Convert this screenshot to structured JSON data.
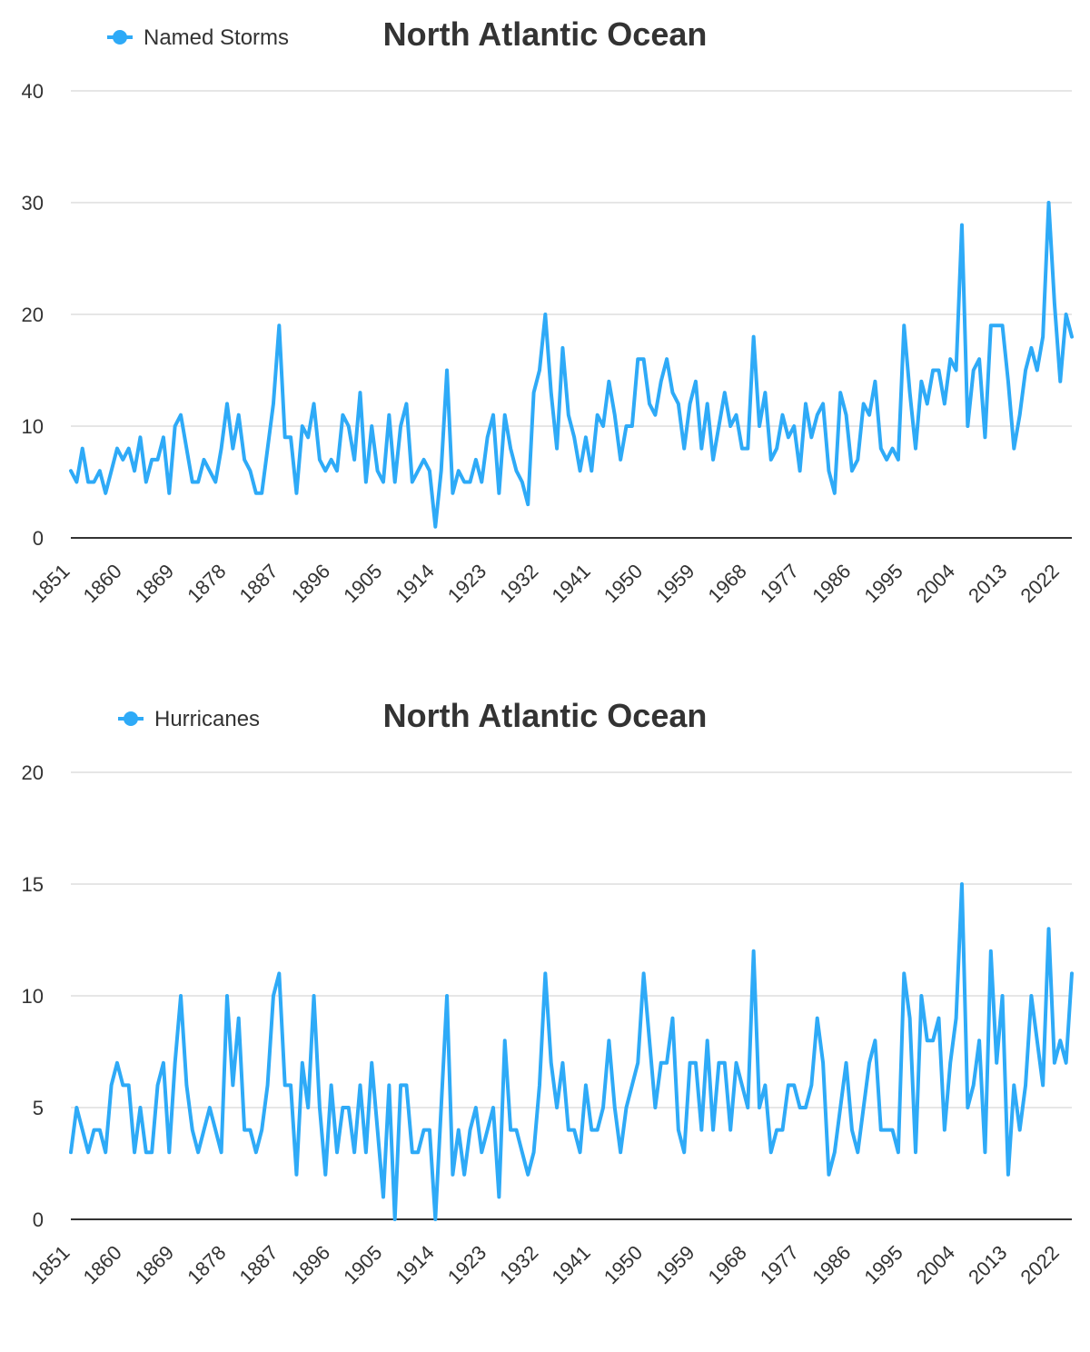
{
  "chart_data": [
    {
      "type": "line",
      "title": "North Atlantic Ocean",
      "legend": "Named Storms",
      "legend_position": "top-left",
      "color": "#2eaaf7",
      "x_start": 1851,
      "x_end": 2024,
      "x_ticks": [
        1851,
        1860,
        1869,
        1878,
        1887,
        1896,
        1905,
        1914,
        1923,
        1932,
        1941,
        1950,
        1959,
        1968,
        1977,
        1986,
        1995,
        2004,
        2013,
        2022
      ],
      "y_ticks": [
        0,
        10,
        20,
        30,
        40
      ],
      "ylim": [
        0,
        40
      ],
      "grid": true,
      "values": [
        6,
        5,
        8,
        5,
        5,
        6,
        4,
        6,
        8,
        7,
        8,
        6,
        9,
        5,
        7,
        7,
        9,
        4,
        10,
        11,
        8,
        5,
        5,
        7,
        6,
        5,
        8,
        12,
        8,
        11,
        7,
        6,
        4,
        4,
        8,
        12,
        19,
        9,
        9,
        4,
        10,
        9,
        12,
        7,
        6,
        7,
        6,
        11,
        10,
        7,
        13,
        5,
        10,
        6,
        5,
        11,
        5,
        10,
        12,
        5,
        6,
        7,
        6,
        1,
        6,
        15,
        4,
        6,
        5,
        5,
        7,
        5,
        9,
        11,
        4,
        11,
        8,
        6,
        5,
        3,
        13,
        15,
        20,
        13,
        8,
        17,
        11,
        9,
        6,
        9,
        6,
        11,
        10,
        14,
        11,
        7,
        10,
        10,
        16,
        16,
        12,
        11,
        14,
        16,
        13,
        12,
        8,
        12,
        14,
        8,
        12,
        7,
        10,
        13,
        10,
        11,
        8,
        8,
        18,
        10,
        13,
        7,
        8,
        11,
        9,
        10,
        6,
        12,
        9,
        11,
        12,
        6,
        4,
        13,
        11,
        6,
        7,
        12,
        11,
        14,
        8,
        7,
        8,
        7,
        19,
        13,
        8,
        14,
        12,
        15,
        15,
        12,
        16,
        15,
        28,
        10,
        15,
        16,
        9,
        19,
        19,
        19,
        14,
        8,
        11,
        15,
        17,
        15,
        18,
        30,
        21,
        14,
        20,
        18
      ]
    },
    {
      "type": "line",
      "title": "North Atlantic Ocean",
      "legend": "Hurricanes",
      "legend_position": "top-left",
      "color": "#2eaaf7",
      "x_start": 1851,
      "x_end": 2024,
      "x_ticks": [
        1851,
        1860,
        1869,
        1878,
        1887,
        1896,
        1905,
        1914,
        1923,
        1932,
        1941,
        1950,
        1959,
        1968,
        1977,
        1986,
        1995,
        2004,
        2013,
        2022
      ],
      "y_ticks": [
        0,
        5,
        10,
        15,
        20
      ],
      "ylim": [
        0,
        20
      ],
      "grid": true,
      "values": [
        3,
        5,
        4,
        3,
        4,
        4,
        3,
        6,
        7,
        6,
        6,
        3,
        5,
        3,
        3,
        6,
        7,
        3,
        7,
        10,
        6,
        4,
        3,
        4,
        5,
        4,
        3,
        10,
        6,
        9,
        4,
        4,
        3,
        4,
        6,
        10,
        11,
        6,
        6,
        2,
        7,
        5,
        10,
        5,
        2,
        6,
        3,
        5,
        5,
        3,
        6,
        3,
        7,
        4,
        1,
        6,
        0,
        6,
        6,
        3,
        3,
        4,
        4,
        0,
        5,
        10,
        2,
        4,
        2,
        4,
        5,
        3,
        4,
        5,
        1,
        8,
        4,
        4,
        3,
        2,
        3,
        6,
        11,
        7,
        5,
        7,
        4,
        4,
        3,
        6,
        4,
        4,
        5,
        8,
        5,
        3,
        5,
        6,
        7,
        11,
        8,
        5,
        7,
        7,
        9,
        4,
        3,
        7,
        7,
        4,
        8,
        4,
        7,
        7,
        4,
        7,
        6,
        5,
        12,
        5,
        6,
        3,
        4,
        4,
        6,
        6,
        5,
        5,
        6,
        9,
        7,
        2,
        3,
        5,
        7,
        4,
        3,
        5,
        7,
        8,
        4,
        4,
        4,
        3,
        11,
        9,
        3,
        10,
        8,
        8,
        9,
        4,
        7,
        9,
        15,
        5,
        6,
        8,
        3,
        12,
        7,
        10,
        2,
        6,
        4,
        6,
        10,
        8,
        6,
        13,
        7,
        8,
        7,
        11
      ]
    }
  ]
}
